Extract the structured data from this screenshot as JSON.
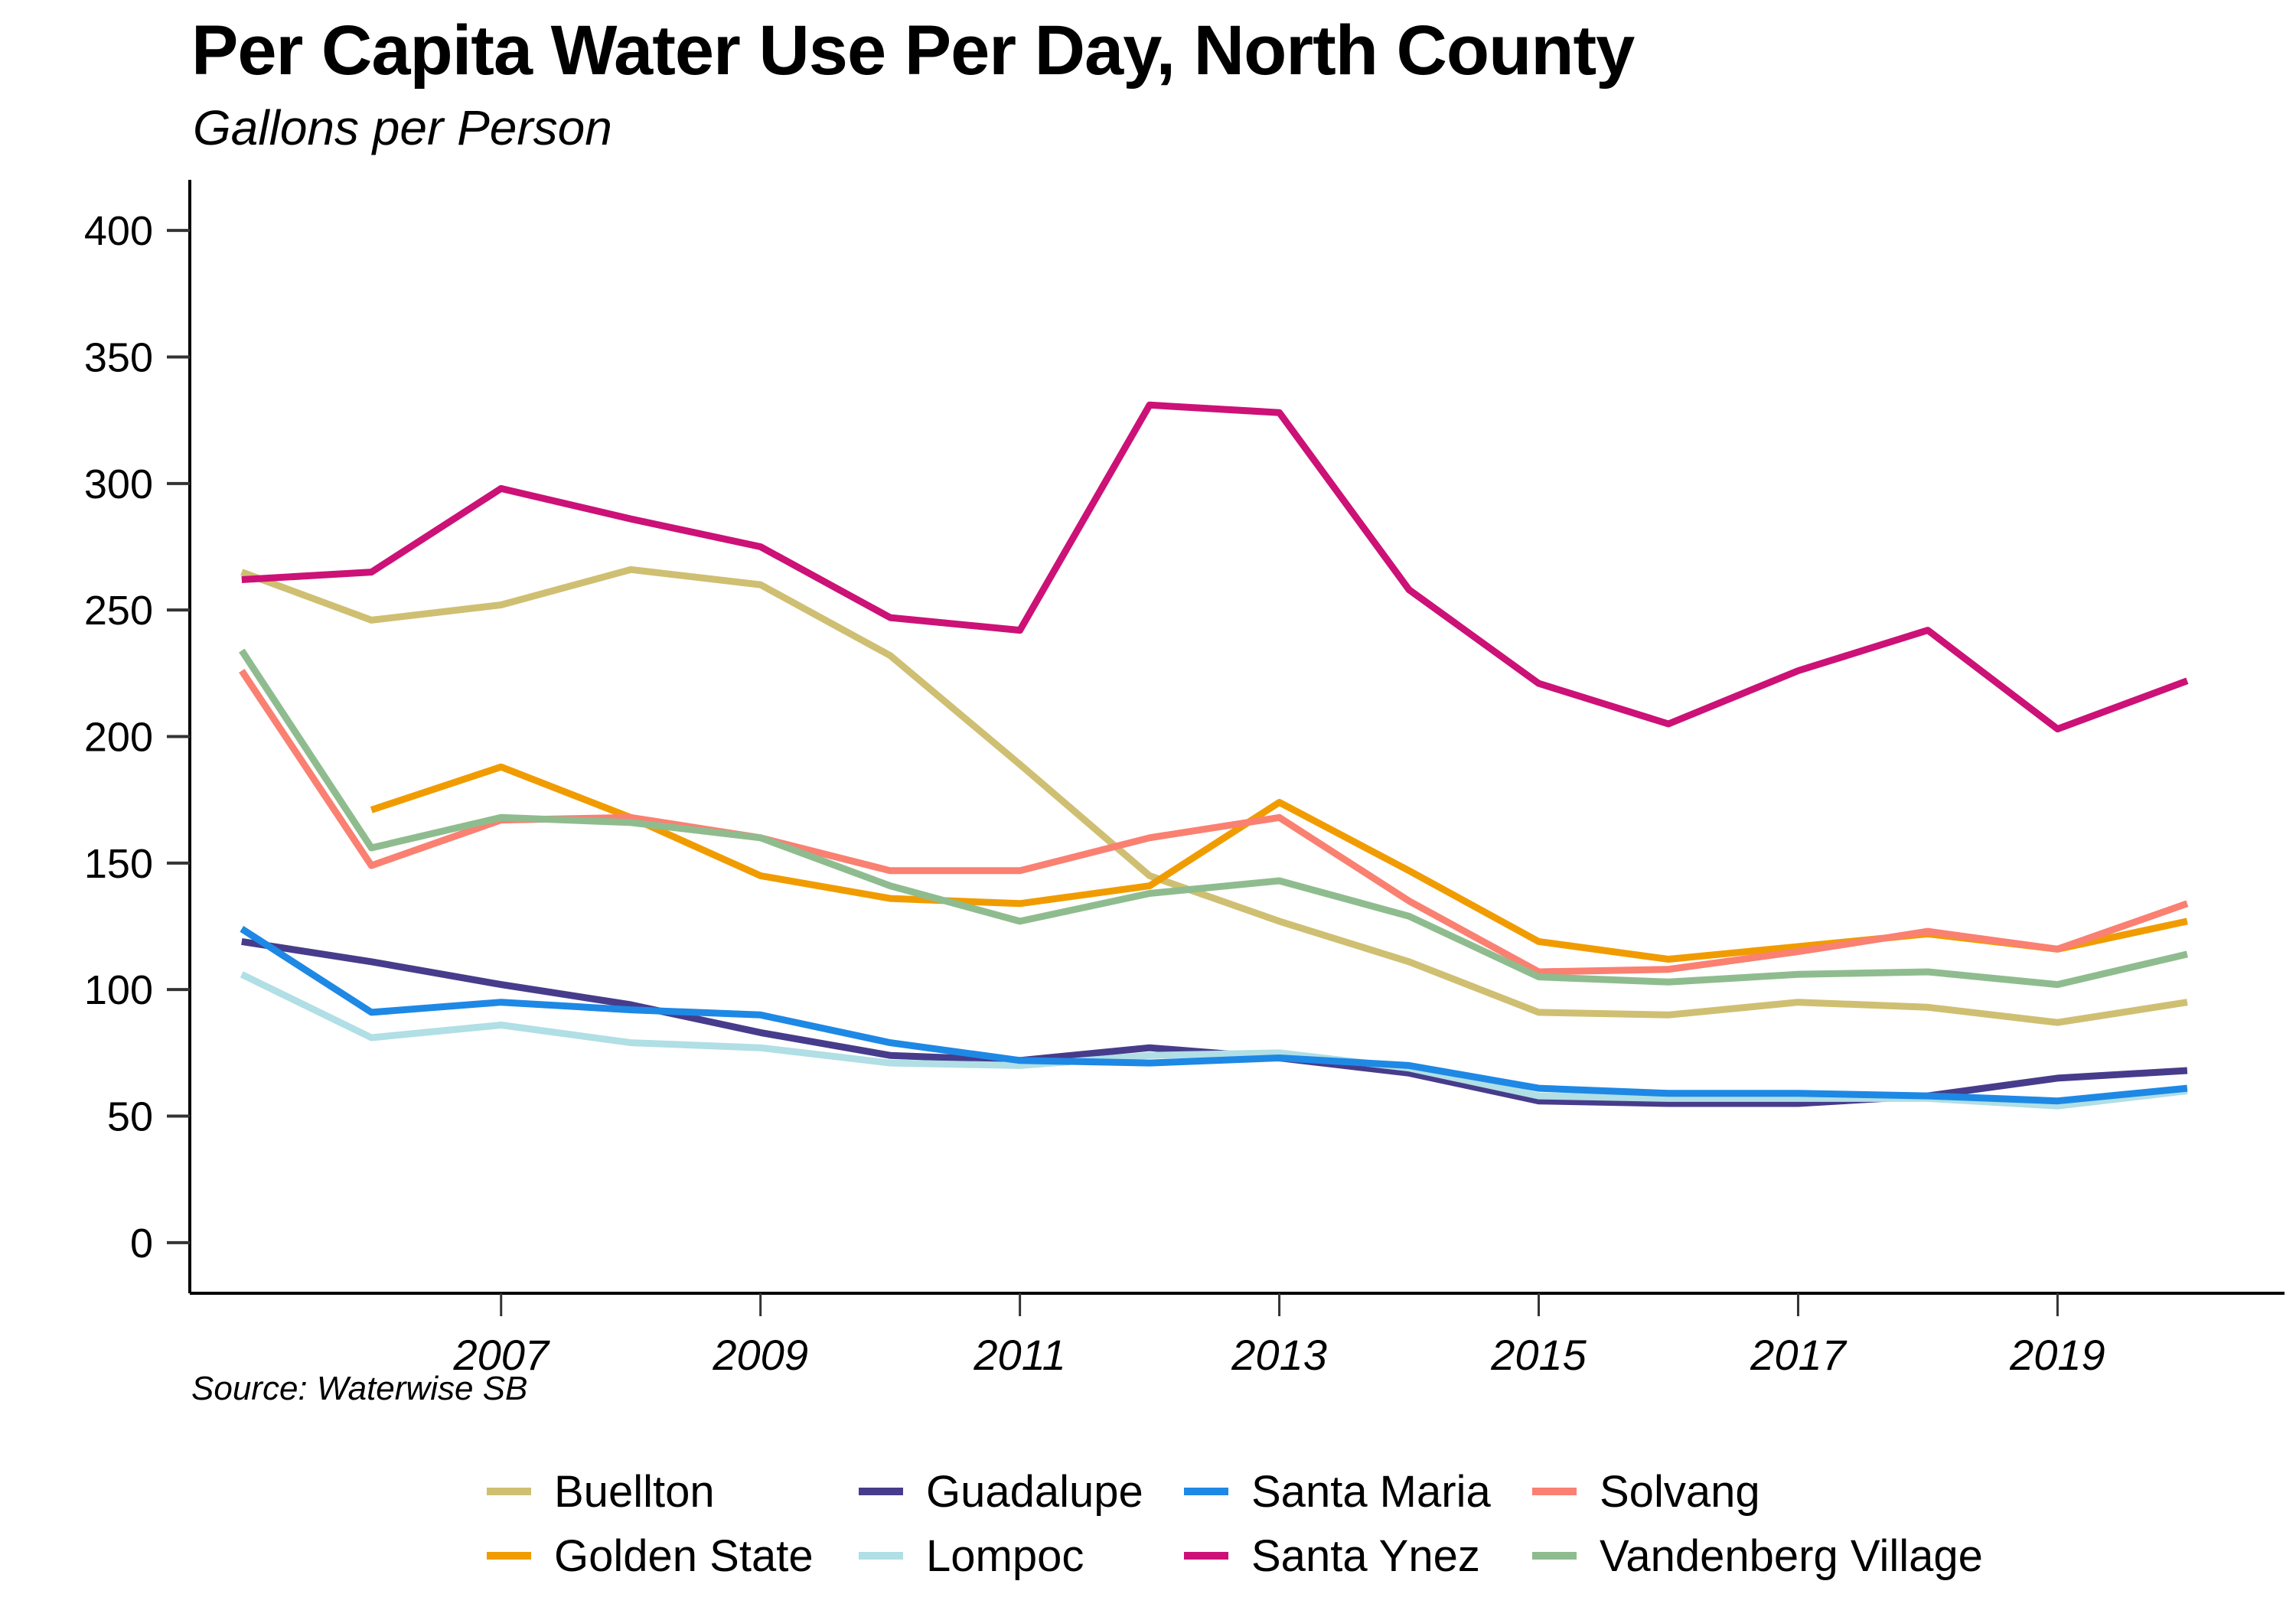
{
  "chart_data": {
    "type": "line",
    "title": "Per Capita Water Use Per Day, North County",
    "subtitle": "Gallons per Person",
    "source": "Source: Waterwise SB",
    "xlabel": "",
    "ylabel": "",
    "x": [
      2005,
      2006,
      2007,
      2008,
      2009,
      2010,
      2011,
      2012,
      2013,
      2014,
      2015,
      2016,
      2017,
      2018,
      2019,
      2020
    ],
    "xticks": [
      2007,
      2009,
      2011,
      2013,
      2015,
      2017,
      2019
    ],
    "xtick_labels": [
      "2007",
      "2009",
      "2011",
      "2013",
      "2015",
      "2017",
      "2019"
    ],
    "yticks": [
      0,
      50,
      100,
      150,
      200,
      250,
      300,
      350,
      400
    ],
    "ytick_labels": [
      "0",
      "50",
      "100",
      "150",
      "200",
      "250",
      "300",
      "350",
      "400"
    ],
    "xlim": [
      2004.6,
      2020.75
    ],
    "ylim": [
      -20,
      420
    ],
    "grid": false,
    "legend_position": "bottom",
    "series": [
      {
        "name": "Buellton",
        "color": "#CFBF72",
        "values": [
          265,
          246,
          252,
          266,
          260,
          232,
          189,
          145,
          127,
          111,
          91,
          90,
          95,
          93,
          87,
          95
        ]
      },
      {
        "name": "Golden State",
        "color": "#F09C00",
        "values": [
          null,
          171,
          188,
          168,
          145,
          136,
          134,
          141,
          174,
          147,
          119,
          112,
          117,
          122,
          116,
          127
        ]
      },
      {
        "name": "Guadalupe",
        "color": "#473C8B",
        "values": [
          119,
          111,
          102,
          94,
          83,
          74,
          72,
          77,
          73,
          67,
          56,
          55,
          55,
          58,
          65,
          68
        ]
      },
      {
        "name": "Lompoc",
        "color": "#B0DFE5",
        "values": [
          106,
          81,
          86,
          79,
          77,
          71,
          70,
          74,
          75,
          69,
          58,
          57,
          57,
          57,
          54,
          60
        ]
      },
      {
        "name": "Santa Maria",
        "color": "#1E88E5",
        "values": [
          124,
          91,
          95,
          92,
          90,
          79,
          72,
          71,
          73,
          70,
          61,
          59,
          59,
          58,
          56,
          61
        ]
      },
      {
        "name": "Santa Ynez",
        "color": "#CC1177",
        "values": [
          262,
          265,
          298,
          286,
          275,
          247,
          242,
          331,
          328,
          258,
          221,
          205,
          226,
          242,
          203,
          222
        ]
      },
      {
        "name": "Solvang",
        "color": "#FA8072",
        "values": [
          226,
          149,
          167,
          168,
          160,
          147,
          147,
          160,
          168,
          135,
          107,
          108,
          115,
          123,
          116,
          134
        ]
      },
      {
        "name": "Vandenberg Village",
        "color": "#8FBC8F",
        "values": [
          234,
          156,
          168,
          166,
          160,
          141,
          127,
          138,
          143,
          129,
          105,
          103,
          106,
          107,
          102,
          114
        ]
      }
    ]
  },
  "legend": {
    "items": [
      {
        "label": "Buellton",
        "color": "#CFBF72"
      },
      {
        "label": "Guadalupe",
        "color": "#473C8B"
      },
      {
        "label": "Santa Maria",
        "color": "#1E88E5"
      },
      {
        "label": "Solvang",
        "color": "#FA8072"
      },
      {
        "label": "Golden State",
        "color": "#F09C00"
      },
      {
        "label": "Lompoc",
        "color": "#B0DFE5"
      },
      {
        "label": "Santa Ynez",
        "color": "#CC1177"
      },
      {
        "label": "Vandenberg Village",
        "color": "#8FBC8F"
      }
    ]
  }
}
